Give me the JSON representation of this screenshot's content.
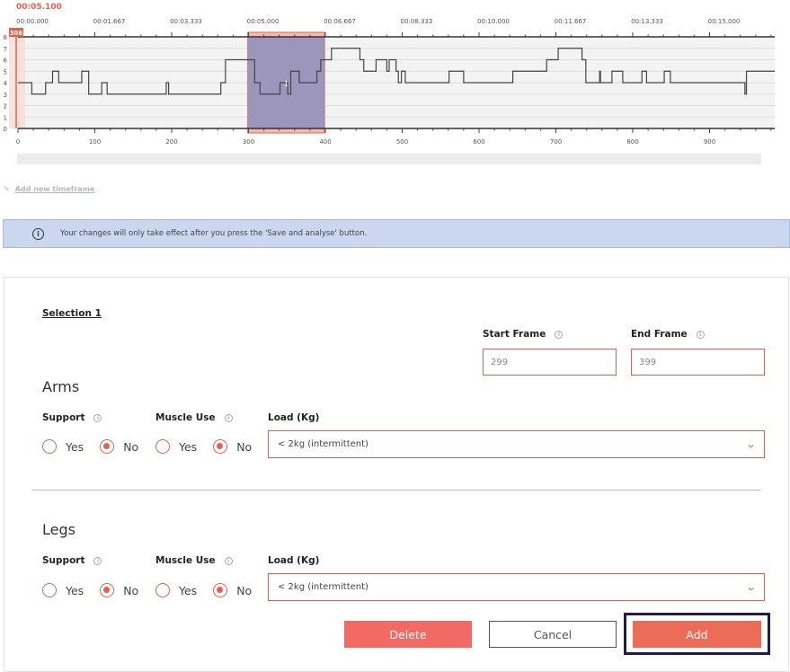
{
  "header": {
    "current_time": "00:05.100"
  },
  "chart_data": {
    "type": "line",
    "step": true,
    "time_ticks": [
      "00:00.000",
      "00:01.667",
      "00:03.333",
      "00:05.000",
      "00:06.667",
      "00:08.333",
      "00:10.000",
      "00:11.667",
      "00:13.333",
      "00:15.000"
    ],
    "x_ticks": [
      0,
      100,
      200,
      300,
      400,
      500,
      600,
      700,
      800,
      900
    ],
    "y_ticks": [
      0,
      1,
      2,
      3,
      4,
      5,
      6,
      7,
      8
    ],
    "xlim": [
      0,
      985
    ],
    "ylim": [
      0,
      8
    ],
    "cursor_frame": 306,
    "cursor_label": "306",
    "selection": {
      "label": "1",
      "start": 299,
      "end": 399
    },
    "points": [
      [
        0,
        4
      ],
      [
        18,
        3
      ],
      [
        36,
        4
      ],
      [
        45,
        5
      ],
      [
        53,
        4
      ],
      [
        83,
        5
      ],
      [
        92,
        3
      ],
      [
        109,
        4
      ],
      [
        116,
        3
      ],
      [
        193,
        4
      ],
      [
        196,
        3
      ],
      [
        264,
        4
      ],
      [
        270,
        6
      ],
      [
        308,
        4
      ],
      [
        315,
        3
      ],
      [
        341,
        4
      ],
      [
        351,
        3
      ],
      [
        355,
        5
      ],
      [
        366,
        4
      ],
      [
        389,
        5
      ],
      [
        394,
        6
      ],
      [
        408,
        7
      ],
      [
        445,
        6
      ],
      [
        450,
        5
      ],
      [
        466,
        6
      ],
      [
        480,
        5
      ],
      [
        483,
        6
      ],
      [
        492,
        5
      ],
      [
        495,
        4
      ],
      [
        499,
        5
      ],
      [
        504,
        4
      ],
      [
        561,
        5
      ],
      [
        580,
        4
      ],
      [
        644,
        5
      ],
      [
        688,
        6
      ],
      [
        703,
        7
      ],
      [
        734,
        6
      ],
      [
        739,
        4
      ],
      [
        757,
        5
      ],
      [
        758,
        4
      ],
      [
        773,
        5
      ],
      [
        787,
        4
      ],
      [
        812,
        5
      ],
      [
        818,
        4
      ],
      [
        841,
        5
      ],
      [
        849,
        4
      ],
      [
        946,
        3
      ],
      [
        948,
        5
      ],
      [
        985,
        5
      ]
    ]
  },
  "add_timeframe": "Add new timeframe",
  "notice": "Your changes will only take effect after you press the 'Save and analyse' button.",
  "form": {
    "selection_title": "Selection 1",
    "start_label": "Start Frame",
    "start_value": "299",
    "end_label": "End Frame",
    "end_value": "399",
    "arms": {
      "title": "Arms",
      "support": "Support",
      "muscle": "Muscle Use",
      "load": "Load (Kg)",
      "yes": "Yes",
      "no": "No",
      "load_value": "< 2kg (intermittent)"
    },
    "legs": {
      "title": "Legs",
      "support": "Support",
      "muscle": "Muscle Use",
      "load": "Load (Kg)",
      "yes": "Yes",
      "no": "No",
      "load_value": "< 2kg (intermittent)"
    },
    "delete": "Delete",
    "cancel": "Cancel",
    "add": "Add"
  },
  "colors": {
    "accent": "#e8604c",
    "selection": "#8d8fbe",
    "delete": "#f26a63",
    "add": "#ec6c57",
    "focus": "#1f1c4e"
  }
}
